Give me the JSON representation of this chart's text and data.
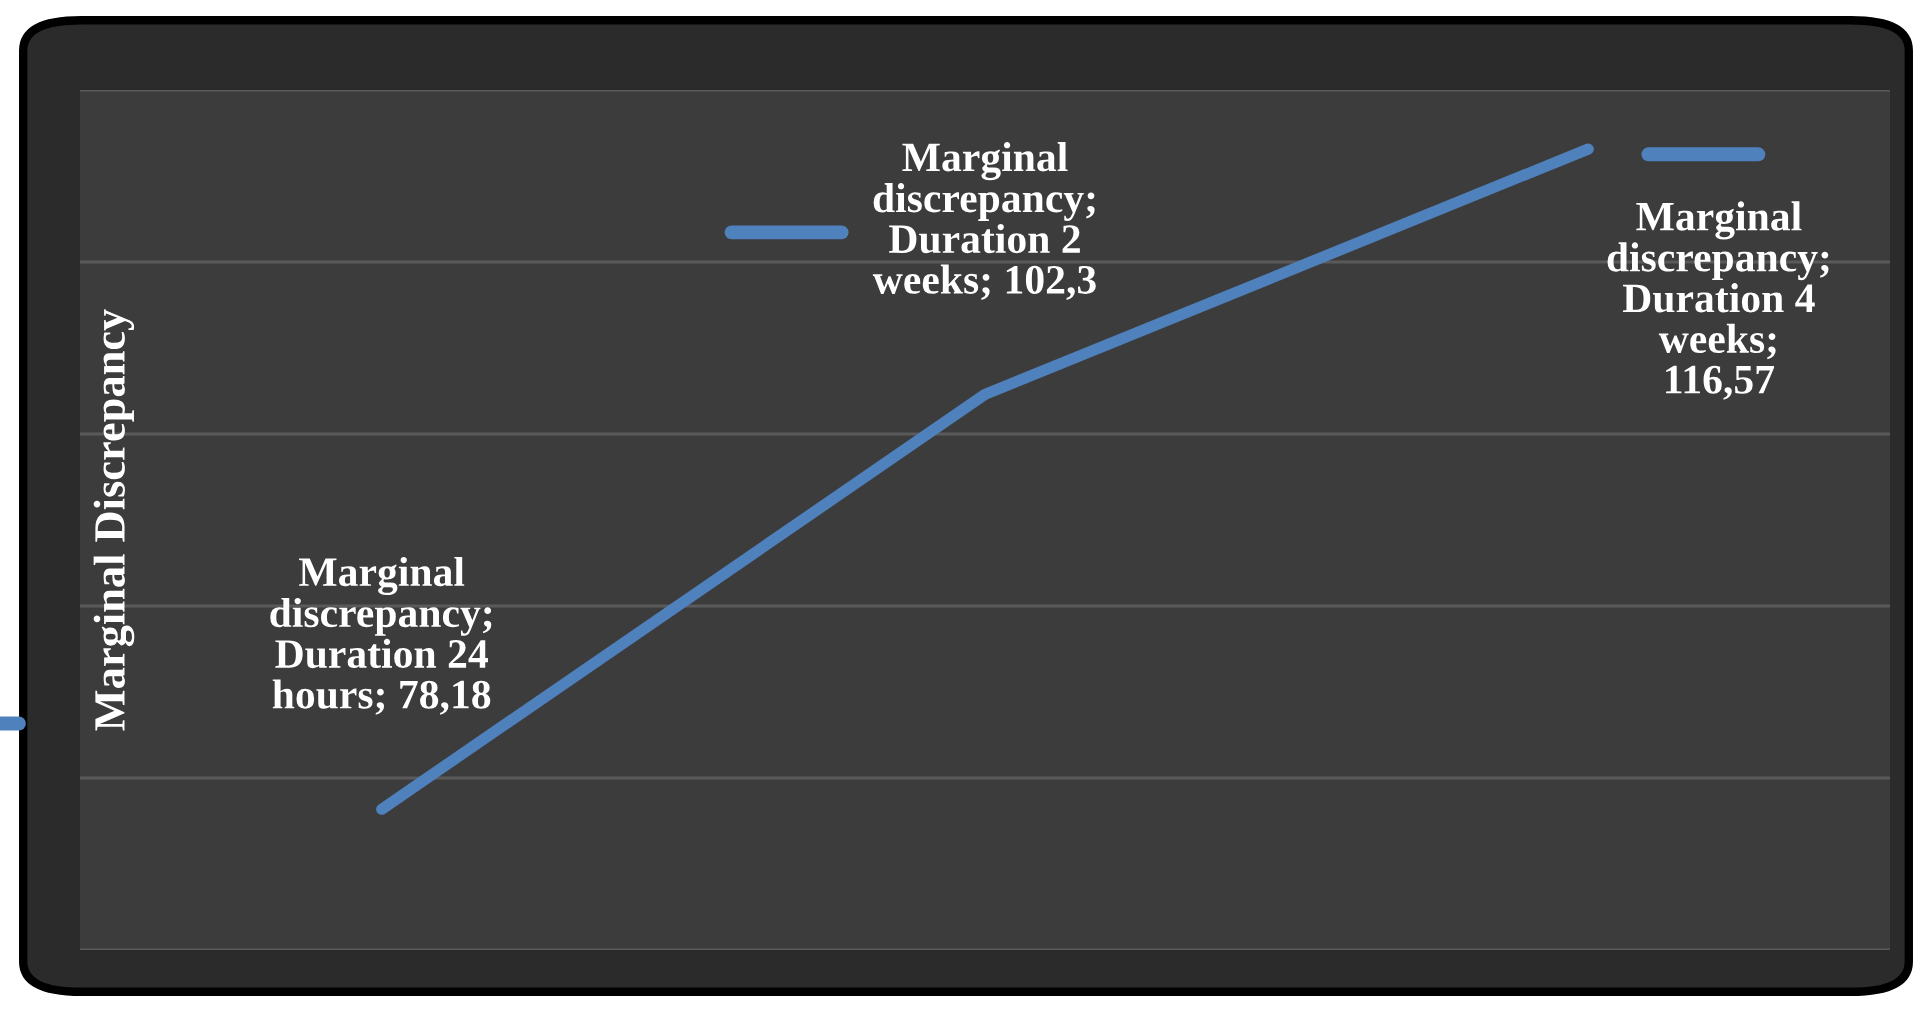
{
  "chart_data": {
    "type": "line",
    "ylabel": "Marginal Discrepancy",
    "categories": [
      null,
      null,
      null
    ],
    "series": [
      {
        "color": "#4f81bd",
        "values": [
          78.18,
          102.3,
          116.57
        ],
        "value_labels": [
          "Marginal\ndiscrepancy;\nDuration 24\nhours; 78,18",
          "Marginal\ndiscrepancy;\nDuration 2\nweeks; 102,3",
          "Marginal\ndiscrepancy;\nDuration 4\nweeks;\n116,57"
        ]
      }
    ],
    "ylim": [
      70,
      120
    ],
    "yticks": [
      {
        "value": 70,
        "label": null
      },
      {
        "value": 80,
        "label": null
      },
      {
        "value": 90,
        "label": null
      },
      {
        "value": 100,
        "label": null
      },
      {
        "value": 110,
        "label": null
      },
      {
        "value": 120,
        "label": null
      }
    ],
    "grid": "y",
    "legend": false,
    "marker": "none",
    "line_style": "solid"
  }
}
